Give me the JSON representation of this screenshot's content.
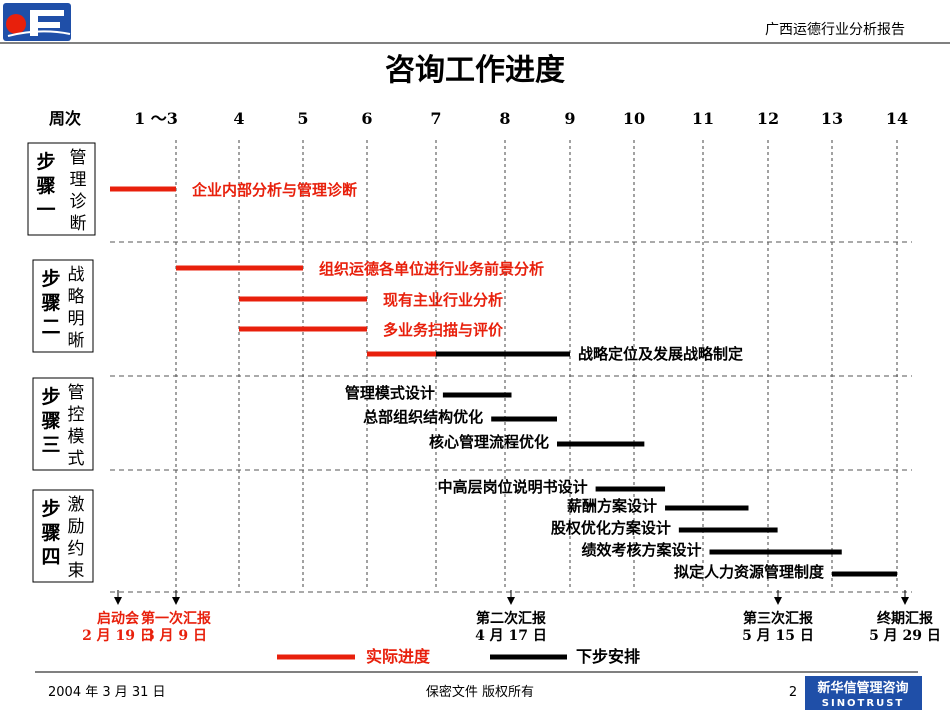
{
  "header": {
    "report_title": "广西运德行业分析报告"
  },
  "chart_data": {
    "type": "gantt",
    "title": "咨询工作进度",
    "time_axis_label": "周次",
    "week_labels": [
      "1 ～3",
      "4",
      "5",
      "6",
      "7",
      "8",
      "9",
      "10",
      "11",
      "12",
      "13",
      "14"
    ],
    "phases": [
      {
        "name": "步骤一",
        "subtitle": "管理诊断"
      },
      {
        "name": "步骤二",
        "subtitle": "战略明晰"
      },
      {
        "name": "步骤三",
        "subtitle": "管控模式"
      },
      {
        "name": "步骤四",
        "subtitle": "激励约束"
      }
    ],
    "tasks": [
      {
        "phase": 0,
        "label": "企业内部分析与管理诊断",
        "actual": [
          1.0,
          3.0
        ],
        "plan": null
      },
      {
        "phase": 1,
        "label": "组织运德各单位进行业务前景分析",
        "actual": [
          3.0,
          5.0
        ],
        "plan": null
      },
      {
        "phase": 1,
        "label": "现有主业行业分析",
        "actual": [
          4.0,
          6.0
        ],
        "plan": null
      },
      {
        "phase": 1,
        "label": "多业务扫描与评价",
        "actual": [
          4.0,
          6.0
        ],
        "plan": null
      },
      {
        "phase": 1,
        "label": "战略定位及发展战略制定",
        "actual": [
          6.0,
          7.0
        ],
        "plan": [
          7.0,
          9.0
        ]
      },
      {
        "phase": 2,
        "label": "管理模式设计",
        "actual": null,
        "plan": [
          7.1,
          8.1
        ]
      },
      {
        "phase": 2,
        "label": "总部组织结构优化",
        "actual": null,
        "plan": [
          7.8,
          8.8
        ]
      },
      {
        "phase": 2,
        "label": "核心管理流程优化",
        "actual": null,
        "plan": [
          8.8,
          10.15
        ]
      },
      {
        "phase": 3,
        "label": "中高层岗位说明书设计",
        "actual": null,
        "plan": [
          9.4,
          10.45
        ]
      },
      {
        "phase": 3,
        "label": "薪酬方案设计",
        "actual": null,
        "plan": [
          10.45,
          11.7
        ]
      },
      {
        "phase": 3,
        "label": "股权优化方案设计",
        "actual": null,
        "plan": [
          10.65,
          12.15
        ]
      },
      {
        "phase": 3,
        "label": "绩效考核方案设计",
        "actual": null,
        "plan": [
          11.1,
          13.15
        ]
      },
      {
        "phase": 3,
        "label": "拟定人力资源管理制度",
        "actual": null,
        "plan": [
          13.0,
          14.0
        ]
      }
    ],
    "milestones": [
      {
        "week": 0.1,
        "name": "启动会",
        "date": "2 月 19 日",
        "color": "#e8200c"
      },
      {
        "week": 1.0,
        "name": "第一次汇报",
        "date": "3 月 9 日",
        "color": "#e8200c"
      },
      {
        "week": 7.0,
        "name": "第二次汇报",
        "date": "4 月 17 日",
        "color": "#000000"
      },
      {
        "week": 11.0,
        "name": "第三次汇报",
        "date": "5 月 15 日",
        "color": "#000000"
      },
      {
        "week": 13.0,
        "name": "终期汇报",
        "date": "5 月 29 日",
        "color": "#000000"
      }
    ],
    "legend": [
      {
        "label": "实际进度",
        "color": "#e8200c"
      },
      {
        "label": "下步安排",
        "color": "#000000"
      }
    ],
    "colors": {
      "actual": "#e8200c",
      "plan": "#000000",
      "divider": "#555555"
    }
  },
  "footer": {
    "date": "2004 年 3 月 31 日",
    "confidential": "保密文件  版权所有",
    "page_number": "2",
    "brand_cn": "新华信管理咨询",
    "brand_en": "SINOTRUST"
  }
}
